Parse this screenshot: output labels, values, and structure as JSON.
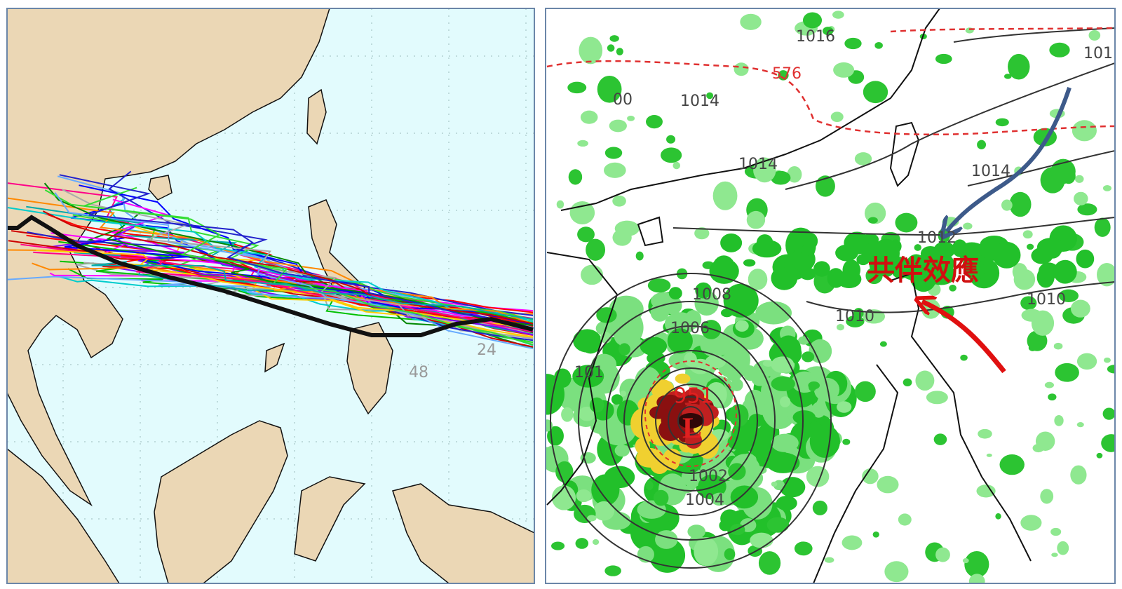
{
  "left_panel": {
    "labels": [
      "24",
      "48"
    ]
  },
  "right_panel": {
    "isobar_labels": [
      "1016",
      "1014",
      "00",
      "1014",
      "1014",
      "1012",
      "101",
      "1010",
      "1010",
      "1008",
      "1006",
      "1002",
      "1004",
      "101"
    ],
    "height_label": "576",
    "center_pressure": "951",
    "low_marker": "L",
    "annotation": "共伴效應"
  }
}
